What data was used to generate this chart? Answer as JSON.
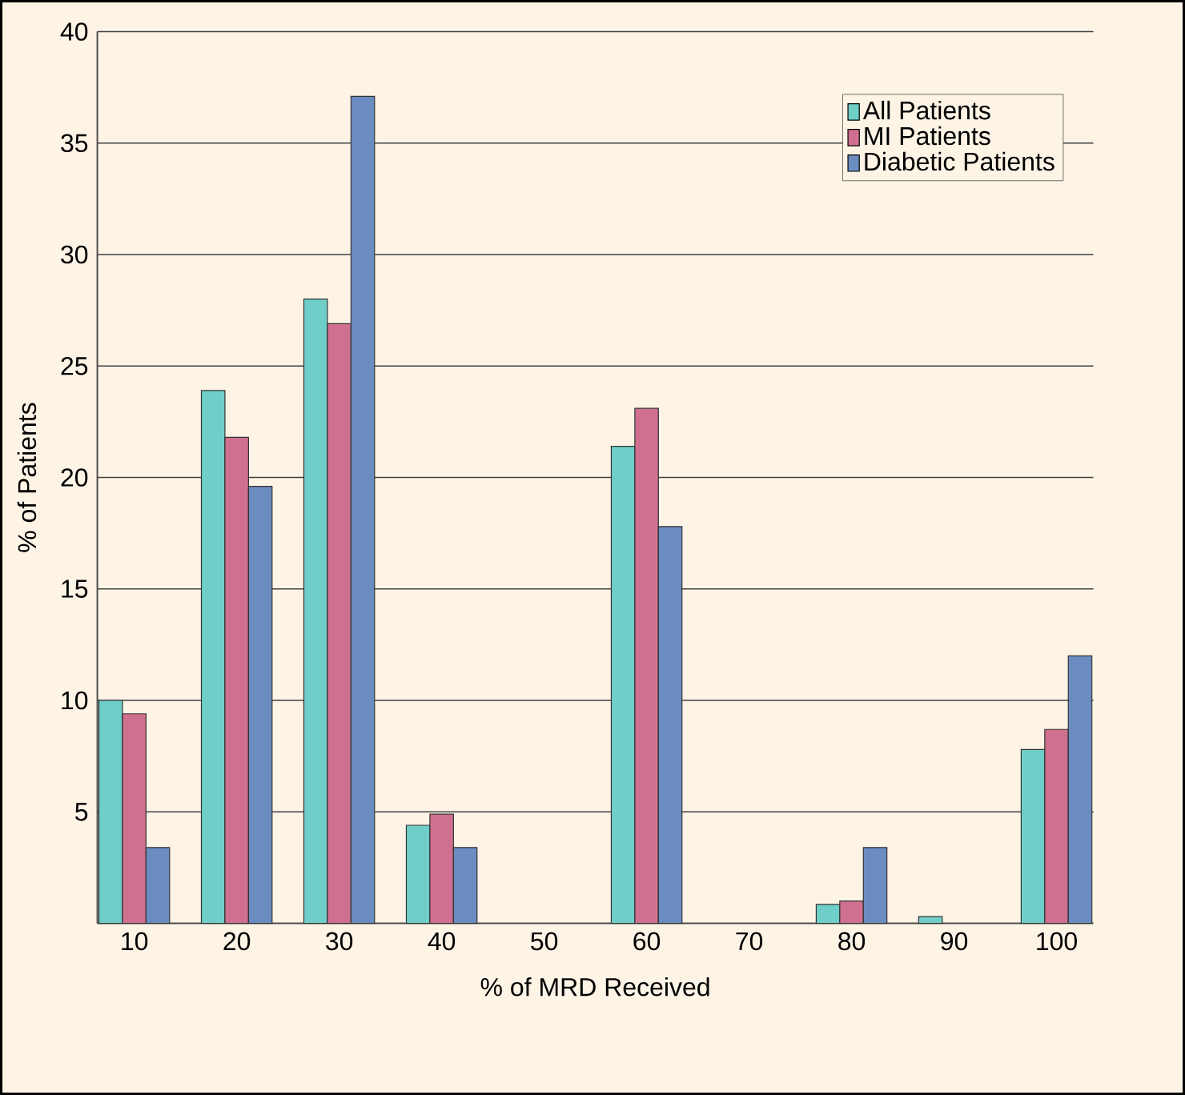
{
  "chart_data": {
    "type": "bar",
    "xlabel": "% of MRD Received",
    "ylabel": "% of Patients",
    "categories": [
      "10",
      "20",
      "30",
      "40",
      "50",
      "60",
      "70",
      "80",
      "90",
      "100"
    ],
    "series": [
      {
        "name": "All Patients",
        "color": "#6fcfc8",
        "values": [
          10.0,
          23.9,
          28.0,
          4.4,
          null,
          21.4,
          null,
          0.85,
          0.3,
          7.8
        ]
      },
      {
        "name": "MI Patients",
        "color": "#d07090",
        "values": [
          9.4,
          21.8,
          26.9,
          4.9,
          null,
          23.1,
          null,
          1.0,
          null,
          8.7
        ]
      },
      {
        "name": "Diabetic Patients",
        "color": "#6a8cc0",
        "values": [
          3.4,
          19.6,
          37.1,
          3.4,
          null,
          17.8,
          null,
          3.4,
          null,
          12.0
        ]
      }
    ],
    "ylim": [
      0,
      40
    ],
    "yticks": [
      5,
      10,
      15,
      20,
      25,
      30,
      35,
      40
    ],
    "grid": "y",
    "legend": "top right"
  }
}
